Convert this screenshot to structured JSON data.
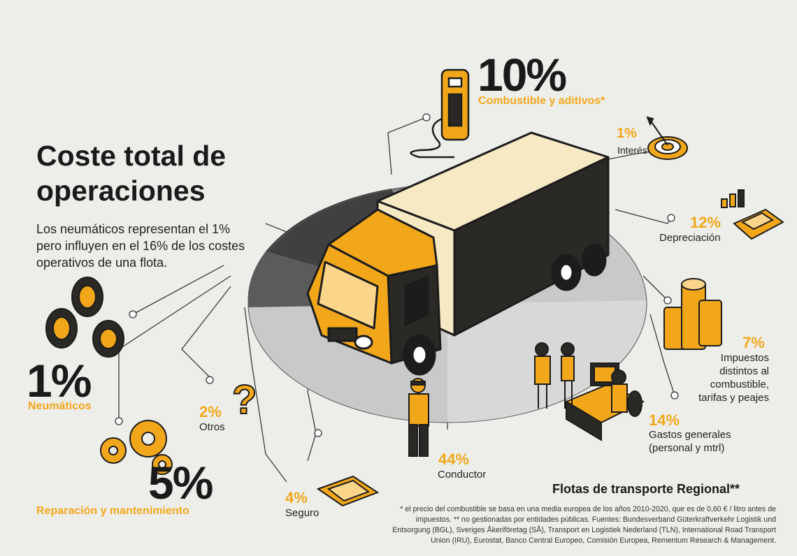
{
  "title": "Coste total de operaciones",
  "intro": "Los neumáticos representan el 1% pero influyen en el 16% de los costes operativos de una flota.",
  "colors": {
    "accent": "#f2a71b",
    "dark": "#1f1d1b",
    "background": "#edeeea",
    "disc": "#c9c9c9"
  },
  "segments": [
    {
      "id": "combustible",
      "percent": "10%",
      "label": "Combustible y aditivos*",
      "icon": "fuel-pump-icon"
    },
    {
      "id": "interes",
      "percent": "1%",
      "label": "Interés",
      "icon": "target-icon"
    },
    {
      "id": "depreciacion",
      "percent": "12%",
      "label": "Depreciación",
      "icon": "calculator-icon"
    },
    {
      "id": "impuestos",
      "percent": "7%",
      "label": "Impuestos distintos al combustible, tarifas y peajes",
      "label_lines": [
        "Impuestos",
        "distintos al",
        "combustible,",
        "tarifas y peajes"
      ],
      "icon": "coin-stacks-icon"
    },
    {
      "id": "gastos",
      "percent": "14%",
      "label": "Gastos generales (personal y mtrl)",
      "label_lines": [
        "Gastos generales",
        "(personal y mtrl)"
      ],
      "icon": "office-workers-icon"
    },
    {
      "id": "conductor",
      "percent": "44%",
      "label": "Conductor",
      "icon": "driver-icon"
    },
    {
      "id": "seguro",
      "percent": "4%",
      "label": "Seguro",
      "icon": "insurance-document-icon"
    },
    {
      "id": "otros",
      "percent": "2%",
      "label": "Otros",
      "icon": "question-mark-icon"
    },
    {
      "id": "reparacion",
      "percent": "5%",
      "label": "Reparación y mantenimiento",
      "icon": "gears-icon"
    },
    {
      "id": "neumaticos",
      "percent": "1%",
      "label": "Neumáticos",
      "icon": "tires-icon"
    }
  ],
  "footer": {
    "title": "Flotas de transporte Regional**",
    "footnote": "* el precio del combustible se basa en una media europea de los años 2010-2020, que es de 0,60 € / litro antes de impuestos. ** no gestionadas por entidades públicas. Fuentes: Bundesverband Güterkraftverkehr Logistik und Entsorgung (BGL), Sveriges Åkeriföretag (SÅ), Transport en Logistiek Nederland (TLN), International Road Transport Union (IRU), Eurostat, Banco Central Europeo, Comisión Europea, Rementum Research & Management."
  }
}
